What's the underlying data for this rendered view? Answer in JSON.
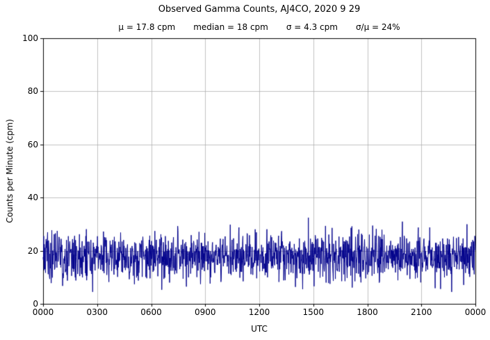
{
  "chart_data": {
    "type": "line",
    "title": "Observed Gamma Counts, AJ4CO, 2020 9 29",
    "stats": {
      "mu": "μ = 17.8 cpm",
      "median": "median = 18 cpm",
      "sigma": "σ = 4.3 cpm",
      "ratio": "σ/μ = 24%"
    },
    "xlabel": "UTC",
    "ylabel": "Counts per Minute (cpm)",
    "ylim": [
      0,
      100
    ],
    "yticks": [
      0,
      20,
      40,
      60,
      80,
      100
    ],
    "xtick_labels": [
      "0000",
      "0300",
      "0600",
      "0900",
      "1200",
      "1500",
      "1800",
      "2100",
      "0000"
    ],
    "x_range_minutes": [
      0,
      1440
    ],
    "grid": true,
    "grid_color": "#b0b0b0",
    "axis_color": "#000000",
    "line_color": "#00008b",
    "background_color": "#ffffff",
    "series": [
      {
        "name": "observed-gamma-counts",
        "n_points": 1440,
        "mean_cpm": 17.8,
        "median_cpm": 18,
        "sigma_cpm": 4.3,
        "approx_min_cpm": 5,
        "approx_max_cpm": 33,
        "seed": 20200929
      }
    ]
  }
}
